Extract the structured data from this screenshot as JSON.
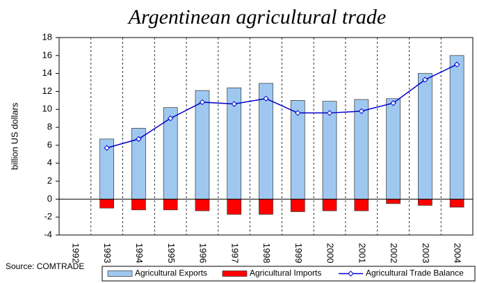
{
  "chart_data": {
    "type": "bar",
    "title": "Argentinean agricultural trade",
    "y_label": "billion US dollars",
    "source": "Source: COMTRADE",
    "categories": [
      "1992",
      "1993",
      "1994",
      "1995",
      "1996",
      "1997",
      "1998",
      "1999",
      "2000",
      "2001",
      "2002",
      "2003",
      "2004"
    ],
    "series": [
      {
        "name": "Agricultural Exports",
        "type": "bar",
        "color": "#9fc8f0",
        "values": [
          null,
          6.7,
          7.9,
          10.2,
          12.1,
          12.4,
          12.9,
          11.0,
          10.9,
          11.1,
          11.2,
          14.0,
          16.0
        ]
      },
      {
        "name": "Agricultural Imports",
        "type": "bar",
        "color": "#ff0000",
        "values": [
          null,
          -1.0,
          -1.2,
          -1.2,
          -1.3,
          -1.7,
          -1.7,
          -1.4,
          -1.3,
          -1.3,
          -0.5,
          -0.7,
          -0.9
        ]
      },
      {
        "name": "Agricultural Trade Balance",
        "type": "line",
        "color": "#0000cc",
        "values": [
          null,
          5.7,
          6.7,
          9.0,
          10.8,
          10.6,
          11.2,
          9.6,
          9.6,
          9.8,
          10.7,
          13.3,
          15.0
        ]
      }
    ],
    "ylim": [
      -4,
      18
    ],
    "yticks": [
      -4,
      -2,
      0,
      2,
      4,
      6,
      8,
      10,
      12,
      14,
      16,
      18
    ],
    "grid": true,
    "legend": "bottom"
  }
}
